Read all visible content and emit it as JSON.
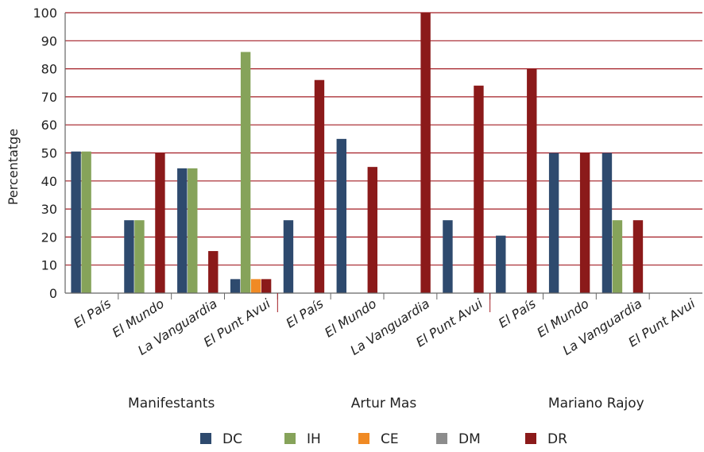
{
  "chart_data": {
    "type": "bar",
    "ylabel": "Percentatge",
    "ylim": [
      0,
      100
    ],
    "yticks": [
      0,
      10,
      20,
      30,
      40,
      50,
      60,
      70,
      80,
      90,
      100
    ],
    "grid": true,
    "legend_position": "bottom",
    "groups": [
      "Manifestants",
      "Artur Mas",
      "Mariano Rajoy"
    ],
    "categories": [
      "El País",
      "El Mundo",
      "La Vanguardia",
      "El Punt Avui",
      "El País",
      "El Mundo",
      "La Vanguardia",
      "El Punt Avui",
      "El País",
      "El Mundo",
      "La Vanguardia",
      "El Punt Avui"
    ],
    "series": [
      {
        "name": "DC",
        "color": "#2e4a6e",
        "values": [
          50.5,
          26,
          44.5,
          5,
          26,
          55,
          0,
          26,
          20.5,
          50,
          50,
          0
        ]
      },
      {
        "name": "IH",
        "color": "#86a35a",
        "values": [
          50.5,
          26,
          44.5,
          86,
          0,
          0,
          0,
          0,
          0,
          0,
          26,
          0
        ]
      },
      {
        "name": "CE",
        "color": "#f08a24",
        "values": [
          0,
          0,
          0,
          5,
          0,
          0,
          0,
          0,
          0,
          0,
          0,
          0
        ]
      },
      {
        "name": "DM",
        "color": "#8c8c8c",
        "values": [
          0,
          0,
          0,
          0,
          0,
          0,
          0,
          0,
          0,
          0,
          0,
          0
        ]
      },
      {
        "name": "DR",
        "color": "#8b1a1a",
        "values": [
          0,
          50,
          15,
          5,
          76,
          45,
          100,
          74,
          80,
          50,
          26,
          0
        ]
      }
    ],
    "gridline_color": "#a31d24"
  }
}
